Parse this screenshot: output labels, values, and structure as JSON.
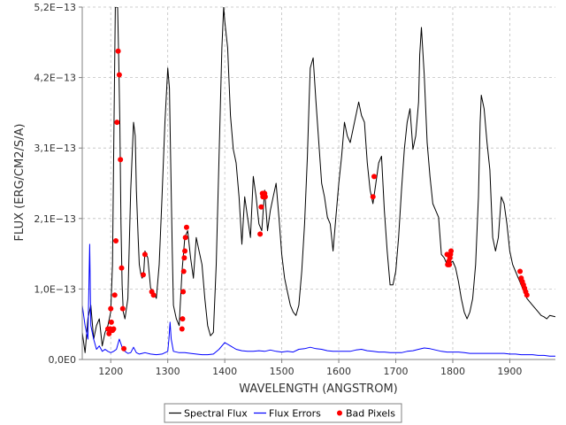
{
  "chart_data": {
    "type": "line",
    "xlabel": "WAVELENGTH (ANGSTROM)",
    "ylabel": "FLUX (ERG/CM2/S/A)",
    "xlim": [
      1150,
      1980
    ],
    "ylim": [
      0,
      5.2e-13
    ],
    "x_ticks": [
      1200,
      1300,
      1400,
      1500,
      1600,
      1700,
      1800,
      1900
    ],
    "x_tick_labels": [
      "1200",
      "1300",
      "1400",
      "1500",
      "1600",
      "1700",
      "1800",
      "1900"
    ],
    "y_ticks": [
      0,
      1.04e-13,
      2.08e-13,
      3.12e-13,
      4.16e-13,
      5.2e-13
    ],
    "y_tick_labels": [
      "0,0E0",
      "1,0E−13",
      "2,1E−13",
      "3,1E−13",
      "4,2E−13",
      "5,2E−13"
    ],
    "grid": true,
    "legend_position": "bottom-center",
    "series": [
      {
        "name": "Spectral Flux",
        "color": "#000000",
        "x": [
          1150,
          1155,
          1160,
          1165,
          1170,
          1175,
          1180,
          1185,
          1190,
          1195,
          1200,
          1203,
          1205,
          1208,
          1210,
          1212,
          1214,
          1216,
          1218,
          1220,
          1222,
          1225,
          1230,
          1235,
          1240,
          1243,
          1245,
          1248,
          1250,
          1253,
          1255,
          1258,
          1260,
          1265,
          1270,
          1275,
          1280,
          1285,
          1290,
          1295,
          1300,
          1303,
          1305,
          1308,
          1310,
          1315,
          1320,
          1325,
          1330,
          1335,
          1340,
          1345,
          1350,
          1355,
          1360,
          1365,
          1370,
          1375,
          1380,
          1385,
          1390,
          1395,
          1398,
          1400,
          1405,
          1410,
          1415,
          1420,
          1425,
          1430,
          1435,
          1440,
          1445,
          1450,
          1455,
          1460,
          1465,
          1470,
          1475,
          1480,
          1485,
          1490,
          1495,
          1500,
          1505,
          1510,
          1515,
          1520,
          1525,
          1530,
          1535,
          1540,
          1545,
          1548,
          1550,
          1555,
          1560,
          1565,
          1570,
          1575,
          1580,
          1585,
          1590,
          1595,
          1600,
          1605,
          1610,
          1615,
          1620,
          1625,
          1630,
          1635,
          1640,
          1645,
          1650,
          1655,
          1660,
          1665,
          1670,
          1675,
          1680,
          1685,
          1690,
          1695,
          1700,
          1705,
          1710,
          1715,
          1720,
          1725,
          1730,
          1735,
          1740,
          1742,
          1745,
          1750,
          1755,
          1760,
          1765,
          1770,
          1775,
          1780,
          1785,
          1790,
          1795,
          1800,
          1805,
          1810,
          1815,
          1820,
          1825,
          1830,
          1835,
          1840,
          1845,
          1848,
          1850,
          1855,
          1860,
          1865,
          1870,
          1875,
          1880,
          1885,
          1890,
          1895,
          1900,
          1905,
          1910,
          1915,
          1920,
          1925,
          1930,
          1935,
          1940,
          1945,
          1950,
          1955,
          1960,
          1965,
          1970,
          1975,
          1980
        ],
        "y": [
          4e-14,
          1e-14,
          6e-14,
          8e-14,
          3e-14,
          5e-14,
          6e-14,
          2e-14,
          4e-14,
          5e-14,
          7e-14,
          1.4e-13,
          3e-13,
          5.2e-13,
          5.2e-13,
          5.2e-13,
          4.4e-13,
          3.5e-13,
          2e-13,
          1.1e-13,
          7e-14,
          6e-14,
          9e-14,
          2.5e-13,
          3.5e-13,
          3.3e-13,
          2.5e-13,
          1.8e-13,
          1.4e-13,
          1.25e-13,
          1.2e-13,
          1.3e-13,
          1.6e-13,
          1.5e-13,
          1.05e-13,
          1e-13,
          9e-14,
          1.4e-13,
          2.4e-13,
          3.5e-13,
          4.3e-13,
          4e-13,
          3e-13,
          1.6e-13,
          8e-14,
          6e-14,
          5e-14,
          1.3e-13,
          1.8e-13,
          1.9e-13,
          1.5e-13,
          1.2e-13,
          1.8e-13,
          1.6e-13,
          1.4e-13,
          9e-14,
          5e-14,
          3.5e-14,
          4e-14,
          1.4e-13,
          3e-13,
          4.6e-13,
          5.2e-13,
          5e-13,
          4.6e-13,
          3.6e-13,
          3.1e-13,
          2.9e-13,
          2.4e-13,
          1.7e-13,
          2.4e-13,
          2.1e-13,
          1.8e-13,
          2.7e-13,
          2.4e-13,
          2e-13,
          1.9e-13,
          2.5e-13,
          1.9e-13,
          2.2e-13,
          2.4e-13,
          2.6e-13,
          2.1e-13,
          1.55e-13,
          1.2e-13,
          1e-13,
          8e-14,
          7e-14,
          6.5e-14,
          8e-14,
          1.3e-13,
          2e-13,
          3e-13,
          3.8e-13,
          4.3e-13,
          4.45e-13,
          3.8e-13,
          3.2e-13,
          2.6e-13,
          2.4e-13,
          2.1e-13,
          2e-13,
          1.6e-13,
          2.1e-13,
          2.6e-13,
          3e-13,
          3.5e-13,
          3.3e-13,
          3.2e-13,
          3.4e-13,
          3.6e-13,
          3.8e-13,
          3.6e-13,
          3.5e-13,
          2.9e-13,
          2.5e-13,
          2.3e-13,
          2.6e-13,
          2.9e-13,
          3e-13,
          2.2e-13,
          1.6e-13,
          1.1e-13,
          1.1e-13,
          1.3e-13,
          1.8e-13,
          2.5e-13,
          3.1e-13,
          3.5e-13,
          3.7e-13,
          3.1e-13,
          3.3e-13,
          3.8e-13,
          4.5e-13,
          4.9e-13,
          4.2e-13,
          3.2e-13,
          2.7e-13,
          2.3e-13,
          2.2e-13,
          2.1e-13,
          1.55e-13,
          1.5e-13,
          1.4e-13,
          1.42e-13,
          1.45e-13,
          1.35e-13,
          1.15e-13,
          9e-14,
          7e-14,
          6e-14,
          7e-14,
          9e-14,
          1.4e-13,
          2.4e-13,
          3.5e-13,
          3.9e-13,
          3.7e-13,
          3.2e-13,
          2.8e-13,
          1.8e-13,
          1.6e-13,
          1.8e-13,
          2.4e-13,
          2.3e-13,
          2e-13,
          1.6e-13,
          1.4e-13,
          1.3e-13,
          1.2e-13,
          1.1e-13,
          1e-13,
          9e-14,
          8.5e-14,
          8e-14,
          7.5e-14,
          7e-14,
          6.5e-14,
          6.3e-14,
          6e-14,
          6.5e-14,
          6.4e-14,
          6.3e-14
        ]
      },
      {
        "name": "Flux Errors",
        "color": "#0000ff",
        "x": [
          1150,
          1155,
          1160,
          1163,
          1165,
          1170,
          1175,
          1180,
          1185,
          1190,
          1195,
          1200,
          1205,
          1210,
          1215,
          1220,
          1225,
          1230,
          1235,
          1240,
          1245,
          1250,
          1255,
          1260,
          1270,
          1280,
          1290,
          1300,
          1302,
          1304,
          1306,
          1310,
          1320,
          1330,
          1340,
          1350,
          1360,
          1370,
          1380,
          1390,
          1400,
          1410,
          1420,
          1430,
          1440,
          1450,
          1460,
          1470,
          1480,
          1490,
          1500,
          1510,
          1520,
          1530,
          1540,
          1550,
          1560,
          1570,
          1580,
          1590,
          1600,
          1610,
          1620,
          1630,
          1640,
          1650,
          1660,
          1670,
          1680,
          1690,
          1700,
          1710,
          1720,
          1730,
          1740,
          1750,
          1760,
          1770,
          1780,
          1790,
          1800,
          1810,
          1820,
          1830,
          1840,
          1850,
          1860,
          1870,
          1880,
          1890,
          1900,
          1910,
          1920,
          1930,
          1940,
          1950,
          1960,
          1970,
          1980
        ],
        "y": [
          8e-14,
          5e-14,
          3e-14,
          1.7e-13,
          5e-14,
          3e-14,
          1.5e-14,
          2e-14,
          1.2e-14,
          1.5e-14,
          1.2e-14,
          1e-14,
          1.2e-14,
          1.5e-14,
          3e-14,
          1.8e-14,
          1.2e-14,
          9e-15,
          1e-14,
          1.8e-14,
          1e-14,
          8e-15,
          9e-15,
          1e-14,
          8e-15,
          7e-15,
          8e-15,
          1.2e-14,
          3e-14,
          5.5e-14,
          3e-14,
          1.2e-14,
          1e-14,
          1e-14,
          9e-15,
          8e-15,
          7e-15,
          7e-15,
          8e-15,
          1.5e-14,
          2.5e-14,
          2e-14,
          1.5e-14,
          1.3e-14,
          1.2e-14,
          1.2e-14,
          1.3e-14,
          1.2e-14,
          1.4e-14,
          1.2e-14,
          1.1e-14,
          1.2e-14,
          1.1e-14,
          1.5e-14,
          1.6e-14,
          1.8e-14,
          1.6e-14,
          1.5e-14,
          1.3e-14,
          1.2e-14,
          1.2e-14,
          1.2e-14,
          1.2e-14,
          1.4e-14,
          1.5e-14,
          1.3e-14,
          1.2e-14,
          1.1e-14,
          1.1e-14,
          1e-14,
          1e-14,
          1e-14,
          1.2e-14,
          1.3e-14,
          1.5e-14,
          1.7e-14,
          1.6e-14,
          1.4e-14,
          1.2e-14,
          1.1e-14,
          1.1e-14,
          1.1e-14,
          1e-14,
          9e-15,
          9e-15,
          9e-15,
          9e-15,
          9e-15,
          9e-15,
          9e-15,
          8e-15,
          8e-15,
          7e-15,
          7e-15,
          7e-15,
          6e-15,
          6e-15,
          5e-15,
          5e-15
        ]
      },
      {
        "name": "Bad Pixels",
        "color": "#ff0000",
        "x": [
          1195,
          1197,
          1199,
          1200,
          1201,
          1203,
          1205,
          1207,
          1209,
          1211,
          1213,
          1215,
          1217,
          1219,
          1221,
          1223,
          1257,
          1260,
          1272,
          1275,
          1325,
          1326,
          1327,
          1328,
          1329,
          1330,
          1331,
          1333,
          1462,
          1464,
          1466,
          1467,
          1468,
          1469,
          1470,
          1471,
          1660,
          1662,
          1790,
          1791,
          1792,
          1793,
          1794,
          1795,
          1796,
          1797,
          1918,
          1920,
          1922,
          1924,
          1926,
          1928,
          1930
        ],
        "y": [
          4.5e-14,
          3.8e-14,
          4.5e-14,
          7.5e-14,
          5.5e-14,
          4.3e-14,
          4.5e-14,
          9.5e-14,
          1.75e-13,
          3.5e-13,
          4.55e-13,
          4.2e-13,
          2.95e-13,
          1.35e-13,
          7.5e-14,
          1.6e-14,
          1.25e-13,
          1.55e-13,
          1e-13,
          9.5e-14,
          4.5e-14,
          6e-14,
          1e-13,
          1.3e-13,
          1.5e-13,
          1.6e-13,
          1.8e-13,
          1.95e-13,
          1.85e-13,
          2.25e-13,
          2.45e-13,
          2.4e-13,
          2.45e-13,
          2.4e-13,
          2.45e-13,
          2.4e-13,
          2.4e-13,
          2.7e-13,
          1.55e-13,
          1.4e-13,
          1.4e-13,
          1.45e-13,
          1.4e-13,
          1.5e-13,
          1.55e-13,
          1.6e-13,
          1.3e-13,
          1.2e-13,
          1.15e-13,
          1.1e-13,
          1.05e-13,
          1e-13,
          9.5e-14
        ]
      }
    ]
  }
}
